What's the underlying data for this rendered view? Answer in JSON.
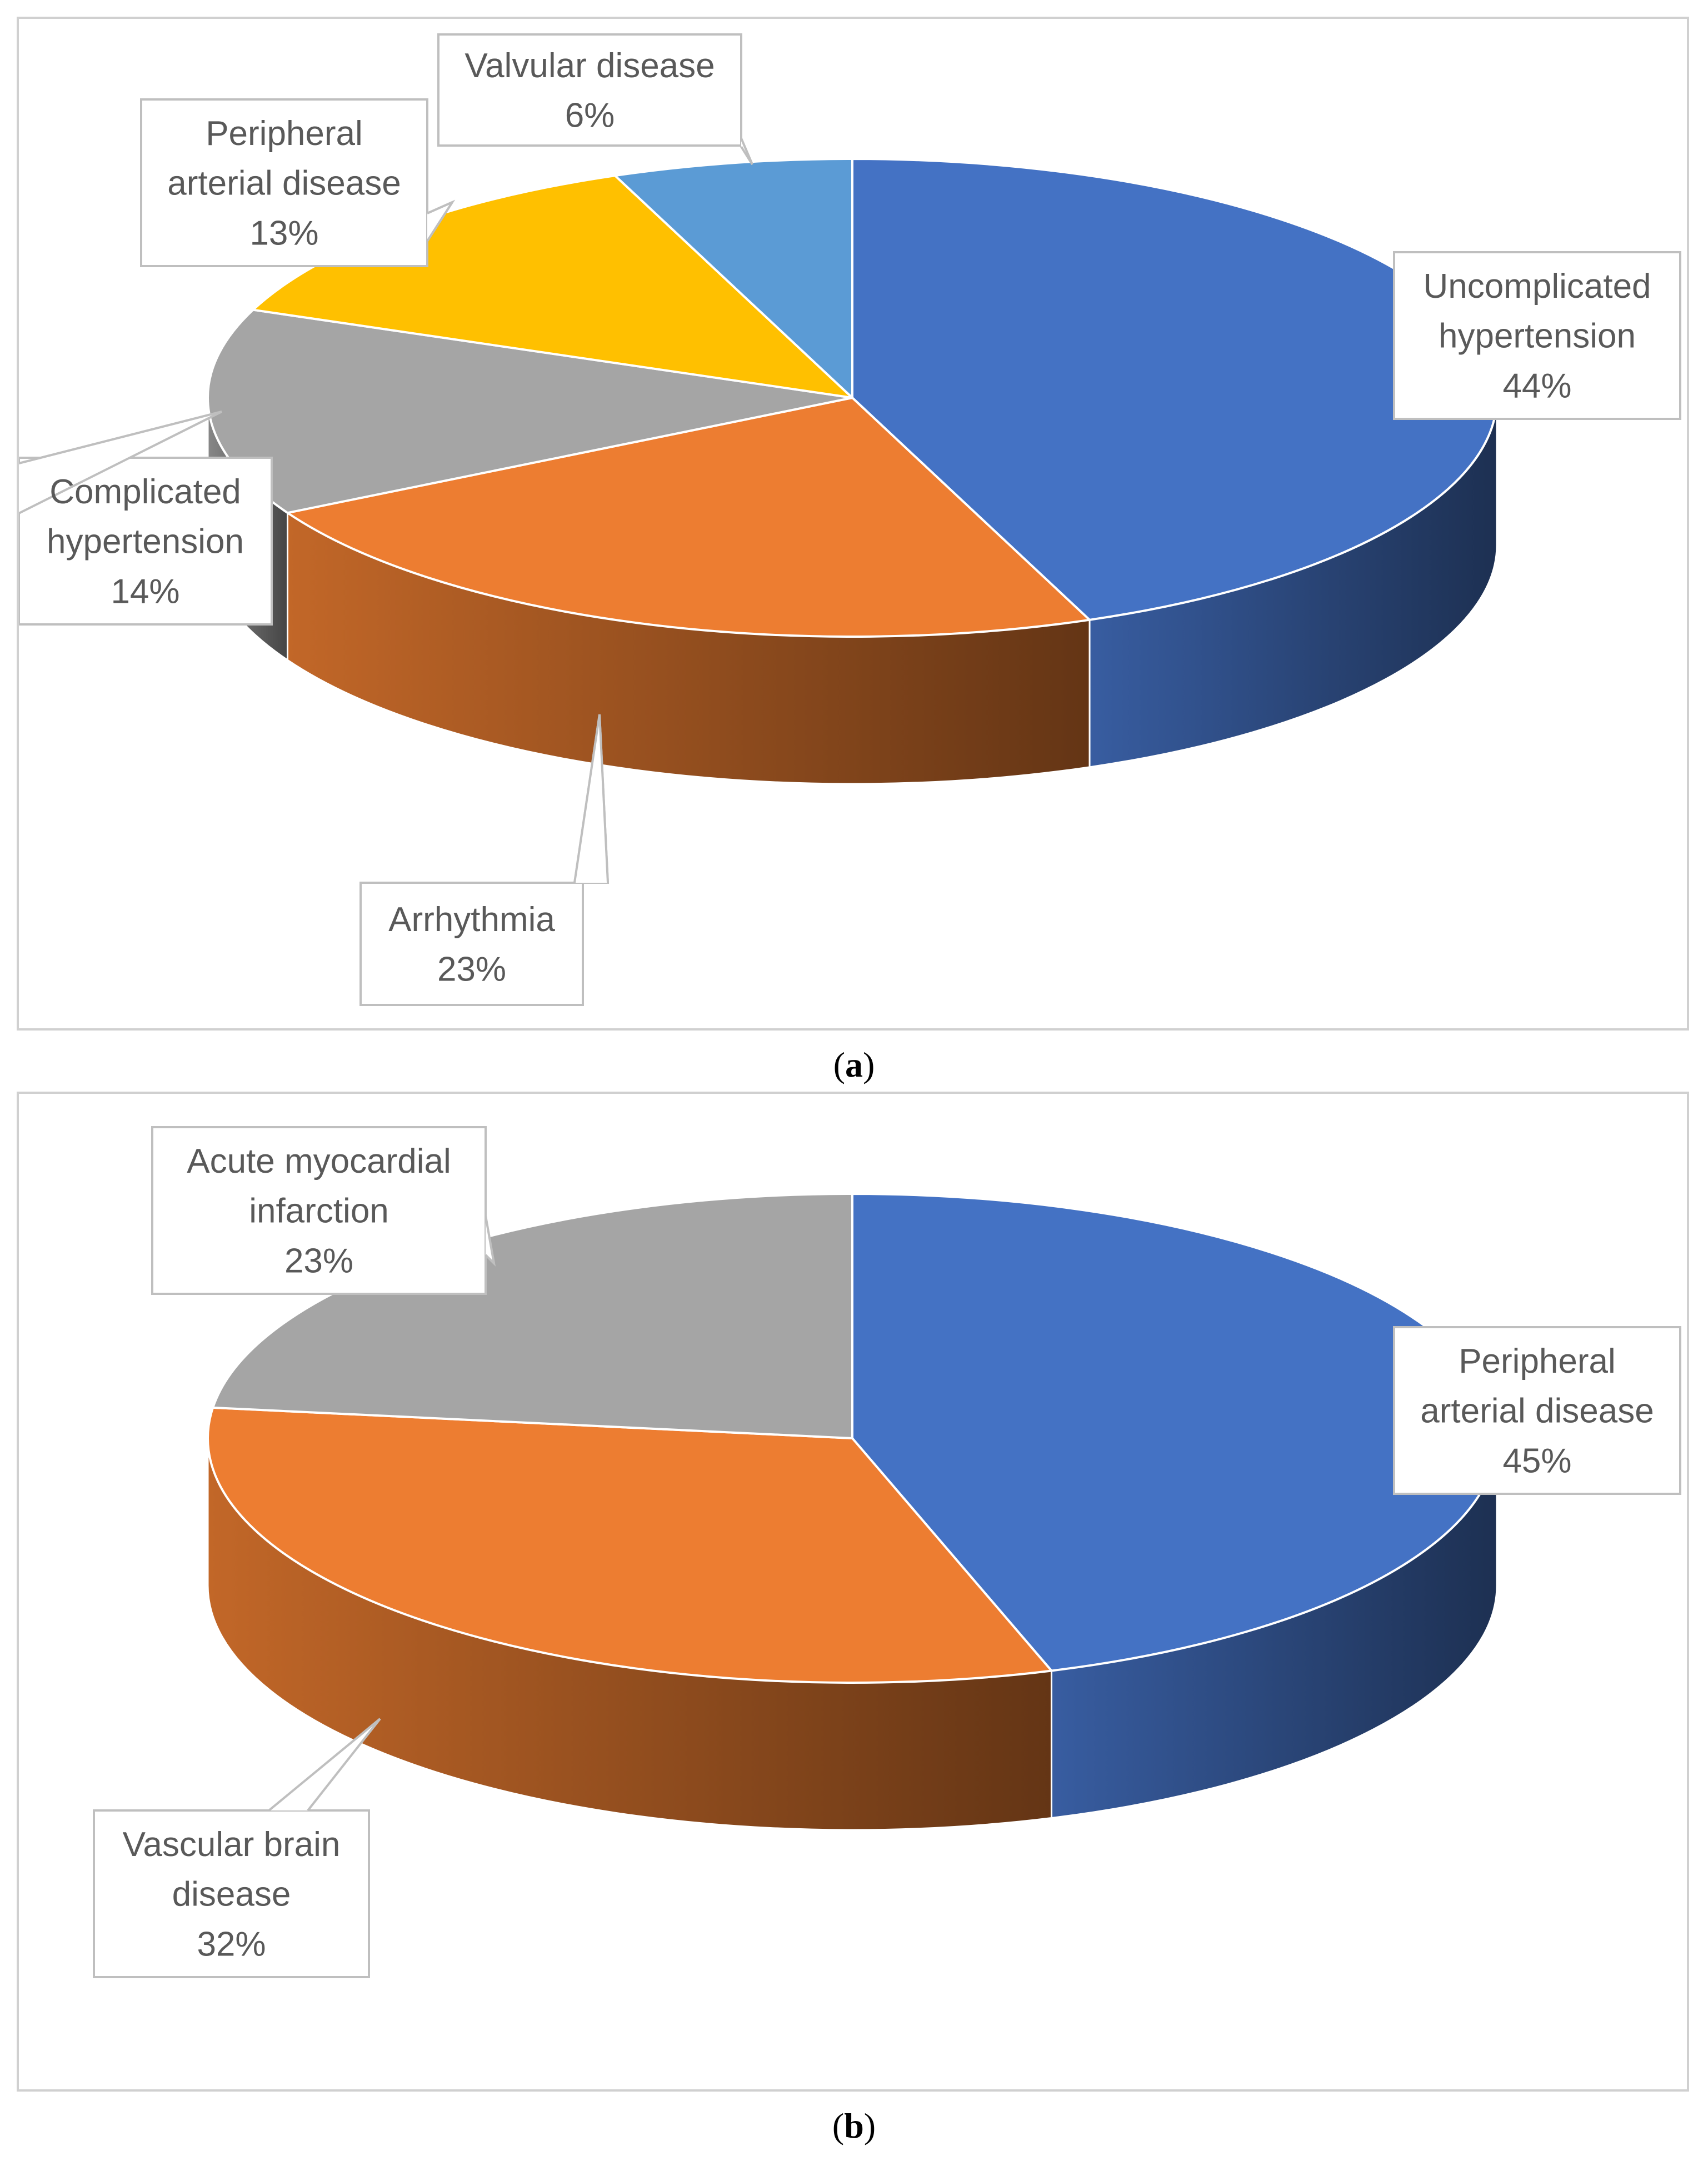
{
  "charts": [
    {
      "id": "a",
      "caption_letter": "a",
      "chart_data": {
        "type": "pie",
        "style": "3d",
        "title": "",
        "slices": [
          {
            "label": "Uncomplicated hypertension",
            "display_lines": [
              "Uncomplicated",
              "hypertension"
            ],
            "value": 44,
            "percent_label": "44%",
            "color": "#4472C4"
          },
          {
            "label": "Arrhythmia",
            "display_lines": [
              "Arrhythmia"
            ],
            "value": 23,
            "percent_label": "23%",
            "color": "#ED7D31"
          },
          {
            "label": "Complicated hypertension",
            "display_lines": [
              "Complicated",
              "hypertension"
            ],
            "value": 14,
            "percent_label": "14%",
            "color": "#A5A5A5"
          },
          {
            "label": "Peripheral arterial disease",
            "display_lines": [
              "Peripheral",
              "arterial disease"
            ],
            "value": 13,
            "percent_label": "13%",
            "color": "#FFC000"
          },
          {
            "label": "Valvular disease",
            "display_lines": [
              "Valvular disease"
            ],
            "value": 6,
            "percent_label": "6%",
            "color": "#5B9BD5"
          }
        ],
        "legend": "none"
      }
    },
    {
      "id": "b",
      "caption_letter": "b",
      "chart_data": {
        "type": "pie",
        "style": "3d",
        "title": "",
        "slices": [
          {
            "label": "Peripheral arterial disease",
            "display_lines": [
              "Peripheral",
              "arterial disease"
            ],
            "value": 45,
            "percent_label": "45%",
            "color": "#4472C4"
          },
          {
            "label": "Vascular brain disease",
            "display_lines": [
              "Vascular brain",
              "disease"
            ],
            "value": 32,
            "percent_label": "32%",
            "color": "#ED7D31"
          },
          {
            "label": "Acute myocardial infarction",
            "display_lines": [
              "Acute myocardial",
              "infarction"
            ],
            "value": 23,
            "percent_label": "23%",
            "color": "#A5A5A5"
          }
        ],
        "legend": "none"
      }
    }
  ]
}
